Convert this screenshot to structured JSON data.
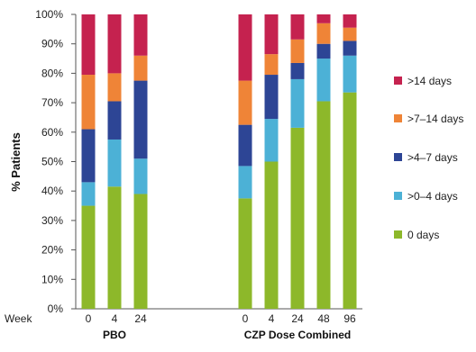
{
  "chart_data": {
    "type": "bar",
    "stacked": true,
    "ylabel": "% Patients",
    "ylim": [
      0,
      100
    ],
    "y_ticks": [
      "0%",
      "10%",
      "20%",
      "30%",
      "40%",
      "50%",
      "60%",
      "70%",
      "80%",
      "90%",
      "100%"
    ],
    "x_axis_label": "Week",
    "grid": false,
    "legend_position": "right",
    "groups": [
      {
        "name": "PBO",
        "categories": [
          "0",
          "4",
          "24"
        ]
      },
      {
        "name": "CZP Dose Combined",
        "categories": [
          "0",
          "4",
          "24",
          "48",
          "96"
        ]
      }
    ],
    "series": [
      {
        "name": "0 days",
        "color": "#8db82a",
        "values": [
          35,
          41.5,
          39,
          37.5,
          50,
          61.5,
          70.5,
          73.5
        ]
      },
      {
        "name": ">0–4 days",
        "color": "#4cb1d6",
        "values": [
          8,
          16,
          12,
          11,
          14.5,
          16.5,
          14.5,
          12.5
        ]
      },
      {
        "name": ">4–7 days",
        "color": "#2d4595",
        "values": [
          18,
          13,
          26.5,
          14,
          15,
          5.5,
          5,
          5
        ]
      },
      {
        "name": ">7–14 days",
        "color": "#ef8437",
        "values": [
          18.5,
          9.5,
          8.5,
          15,
          7,
          8,
          7,
          4.5
        ]
      },
      {
        "name": ">14 days",
        "color": "#c5224f",
        "values": [
          20.5,
          20,
          14,
          22.5,
          13.5,
          8.5,
          3,
          4.5
        ]
      }
    ]
  }
}
